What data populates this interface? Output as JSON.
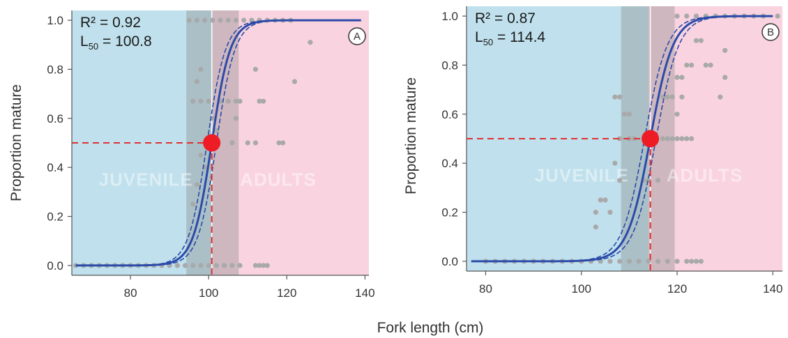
{
  "figure": {
    "shared_xlabel": "Fork length (cm)"
  },
  "colors": {
    "juvenile_bg": "#bfe0ec",
    "adult_bg": "#f9d4e0",
    "band": "#8a8a8a",
    "fit_line": "#2b4aa8",
    "points": "#a9a9a9",
    "l50_marker": "#ee1c24",
    "guide": "#e03030"
  },
  "chart_data": [
    {
      "type": "scatter",
      "panel_label": "A",
      "ylabel": "Proportion mature",
      "xlim": [
        65,
        141
      ],
      "ylim": [
        -0.04,
        1.04
      ],
      "xticks": [
        80,
        100,
        120,
        140
      ],
      "yticks": [
        "0.0",
        "0.2",
        "0.4",
        "0.6",
        "0.8",
        "1.0"
      ],
      "r2_label": "R² = 0.92",
      "l50_label_main": "L",
      "l50_label_sub": "50",
      "l50_label_value": " = 100.8",
      "l50": 100.8,
      "slope": 0.42,
      "uncertainty_band": [
        94.3,
        107.7
      ],
      "regions": [
        {
          "name": "JUVENILE",
          "from": 65,
          "to": 101
        },
        {
          "name": "ADULTS",
          "from": 101,
          "to": 141
        }
      ],
      "series": [
        {
          "points": [
            [
              66,
              0
            ],
            [
              68,
              0
            ],
            [
              70,
              0
            ],
            [
              72,
              0
            ],
            [
              74,
              0
            ],
            [
              76,
              0
            ],
            [
              78,
              0
            ],
            [
              80,
              0
            ],
            [
              82,
              0
            ],
            [
              84,
              0
            ],
            [
              86,
              0
            ],
            [
              88,
              0
            ],
            [
              90,
              0
            ],
            [
              92,
              0
            ],
            [
              94,
              0
            ],
            [
              96,
              0
            ],
            [
              98,
              0
            ],
            [
              100,
              0
            ],
            [
              102,
              0
            ],
            [
              104,
              0
            ],
            [
              106,
              0
            ],
            [
              108,
              0
            ],
            [
              112,
              0
            ],
            [
              113,
              0
            ],
            [
              114,
              0
            ],
            [
              115,
              0
            ],
            [
              96,
              0.25
            ],
            [
              97,
              0.33
            ],
            [
              98,
              0.45
            ],
            [
              99,
              0.4
            ],
            [
              96,
              0.67
            ],
            [
              97,
              0.75
            ],
            [
              98,
              0.8
            ],
            [
              98,
              0.67
            ],
            [
              100,
              0.67
            ],
            [
              101,
              0.6
            ],
            [
              102,
              0.55
            ],
            [
              103,
              0.67
            ],
            [
              105,
              0.67
            ],
            [
              107,
              0.67
            ],
            [
              108,
              0.67
            ],
            [
              106,
              0.5
            ],
            [
              110,
              0.5
            ],
            [
              107,
              0.6
            ],
            [
              112,
              0.8
            ],
            [
              113,
              0.67
            ],
            [
              114,
              0.67
            ],
            [
              112,
              0.5
            ],
            [
              118,
              0.5
            ],
            [
              119,
              0.5
            ],
            [
              122,
              0.75
            ],
            [
              126,
              0.91
            ],
            [
              95,
              1
            ],
            [
              97,
              1
            ],
            [
              99,
              1
            ],
            [
              101,
              1
            ],
            [
              103,
              1
            ],
            [
              105,
              1
            ],
            [
              107,
              1
            ],
            [
              109,
              1
            ],
            [
              111,
              1
            ],
            [
              113,
              1
            ],
            [
              115,
              1
            ],
            [
              117,
              1
            ],
            [
              119,
              1
            ],
            [
              121,
              1
            ]
          ]
        }
      ]
    },
    {
      "type": "scatter",
      "panel_label": "B",
      "ylabel": "Proportion mature",
      "xlim": [
        76,
        142
      ],
      "ylim": [
        -0.04,
        1.04
      ],
      "xticks": [
        80,
        100,
        120,
        140
      ],
      "yticks": [
        "0.0",
        "0.2",
        "0.4",
        "0.6",
        "0.8",
        "1.0"
      ],
      "r2_label": "R² = 0.87",
      "l50_label_main": "L",
      "l50_label_sub": "50",
      "l50_label_value": " = 114.4",
      "l50": 114.4,
      "slope": 0.42,
      "uncertainty_band": [
        108.3,
        119.5
      ],
      "regions": [
        {
          "name": "JUVENILE",
          "from": 76,
          "to": 114
        },
        {
          "name": "ADULTS",
          "from": 114,
          "to": 142
        }
      ],
      "series": [
        {
          "points": [
            [
              80,
              0
            ],
            [
              82,
              0
            ],
            [
              84,
              0
            ],
            [
              86,
              0
            ],
            [
              88,
              0
            ],
            [
              90,
              0
            ],
            [
              92,
              0
            ],
            [
              94,
              0
            ],
            [
              96,
              0
            ],
            [
              98,
              0
            ],
            [
              100,
              0
            ],
            [
              102,
              0
            ],
            [
              104,
              0
            ],
            [
              106,
              0
            ],
            [
              108,
              0
            ],
            [
              110,
              0
            ],
            [
              112,
              0
            ],
            [
              114,
              0
            ],
            [
              116,
              0
            ],
            [
              118,
              0
            ],
            [
              120,
              0
            ],
            [
              122,
              0
            ],
            [
              123,
              0
            ],
            [
              124,
              0
            ],
            [
              125,
              0
            ],
            [
              103,
              0.2
            ],
            [
              104,
              0.25
            ],
            [
              105,
              0.25
            ],
            [
              103,
              0.14
            ],
            [
              106,
              0.2
            ],
            [
              107,
              0.4
            ],
            [
              108,
              0.33
            ],
            [
              107,
              0.67
            ],
            [
              108,
              0.67
            ],
            [
              109,
              0.6
            ],
            [
              110,
              0.6
            ],
            [
              108,
              0.5
            ],
            [
              110,
              0.5
            ],
            [
              111,
              0.5
            ],
            [
              113,
              0.33
            ],
            [
              114,
              0.33
            ],
            [
              116,
              0.33
            ],
            [
              115,
              0.5
            ],
            [
              117,
              0.5
            ],
            [
              118,
              0.5
            ],
            [
              119,
              0.5
            ],
            [
              120,
              0.5
            ],
            [
              121,
              0.5
            ],
            [
              122,
              0.5
            ],
            [
              123,
              0.5
            ],
            [
              117,
              0.67
            ],
            [
              118,
              0.67
            ],
            [
              119,
              0.67
            ],
            [
              120,
              0.6
            ],
            [
              121,
              0.67
            ],
            [
              120,
              0.75
            ],
            [
              121,
              0.75
            ],
            [
              122,
              0.8
            ],
            [
              123,
              0.8
            ],
            [
              124,
              0.9
            ],
            [
              125,
              0.9
            ],
            [
              126,
              0.8
            ],
            [
              127,
              0.8
            ],
            [
              129,
              0.67
            ],
            [
              130,
              0.75
            ],
            [
              130,
              0.86
            ],
            [
              120,
              1
            ],
            [
              122,
              1
            ],
            [
              124,
              1
            ],
            [
              126,
              1
            ],
            [
              128,
              1
            ],
            [
              130,
              1
            ],
            [
              132,
              1
            ],
            [
              134,
              1
            ],
            [
              136,
              1
            ],
            [
              138,
              1
            ],
            [
              141,
              1
            ]
          ]
        }
      ]
    }
  ]
}
